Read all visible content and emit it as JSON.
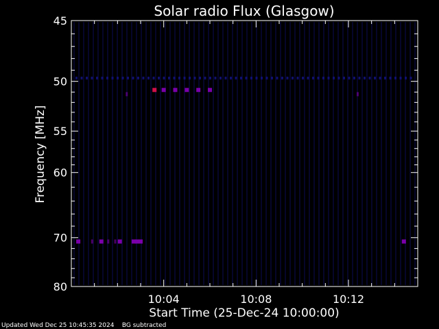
{
  "chart_data": {
    "type": "heatmap",
    "title": "Solar radio Flux (Glasgow)",
    "xlabel": "Start Time (25-Dec-24 10:00:00)",
    "ylabel": "Frequency [MHz]",
    "x_unit": "minutes after 10:00:00",
    "xlim": [
      0,
      15
    ],
    "ylim": [
      45,
      80
    ],
    "x_ticks": [
      {
        "value": 4,
        "label": "10:04"
      },
      {
        "value": 8,
        "label": "10:08"
      },
      {
        "value": 12,
        "label": "10:12"
      }
    ],
    "y_ticks": [
      {
        "value": 45,
        "label": "45"
      },
      {
        "value": 50,
        "label": "50"
      },
      {
        "value": 55,
        "label": "55"
      },
      {
        "value": 60,
        "label": "60"
      },
      {
        "value": 70,
        "label": "70"
      },
      {
        "value": 80,
        "label": "80"
      }
    ],
    "y_minor_ticks": [
      46,
      47,
      48,
      49,
      51,
      52,
      53,
      54,
      56,
      57,
      58,
      59,
      62,
      64,
      66,
      68,
      72,
      74,
      76,
      78
    ],
    "colors": {
      "background": "#000000",
      "frame": "#ffffff",
      "emission": "#7a00aa",
      "emission_strong": "#d0104a",
      "noise": "#12127a"
    },
    "emission_points": [
      {
        "time": 3.6,
        "freq": 50.8,
        "strength": "strong"
      },
      {
        "time": 4.0,
        "freq": 50.8,
        "strength": "mid"
      },
      {
        "time": 4.5,
        "freq": 50.8,
        "strength": "mid"
      },
      {
        "time": 5.0,
        "freq": 50.8,
        "strength": "mid"
      },
      {
        "time": 5.5,
        "freq": 50.8,
        "strength": "mid"
      },
      {
        "time": 6.0,
        "freq": 50.8,
        "strength": "mid"
      },
      {
        "time": 2.4,
        "freq": 51.2,
        "strength": "weak"
      },
      {
        "time": 12.4,
        "freq": 51.2,
        "strength": "weak"
      },
      {
        "time": 0.3,
        "freq": 70.7,
        "strength": "mid"
      },
      {
        "time": 0.9,
        "freq": 70.7,
        "strength": "weak"
      },
      {
        "time": 1.3,
        "freq": 70.7,
        "strength": "mid"
      },
      {
        "time": 1.6,
        "freq": 70.7,
        "strength": "weak"
      },
      {
        "time": 1.9,
        "freq": 70.7,
        "strength": "weak"
      },
      {
        "time": 2.1,
        "freq": 70.7,
        "strength": "mid"
      },
      {
        "time": 2.7,
        "freq": 70.7,
        "strength": "mid"
      },
      {
        "time": 2.85,
        "freq": 70.7,
        "strength": "mid"
      },
      {
        "time": 3.0,
        "freq": 70.7,
        "strength": "mid"
      },
      {
        "time": 14.4,
        "freq": 70.7,
        "strength": "mid"
      }
    ]
  },
  "footer": {
    "updated": "Updated Wed Dec 25 10:45:35 2024",
    "note": "BG subtracted"
  }
}
